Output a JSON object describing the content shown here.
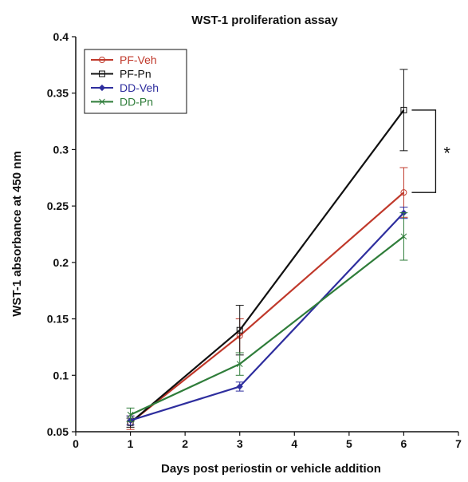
{
  "chart_data": {
    "type": "line",
    "title": "WST-1 proliferation assay",
    "xlabel": "Days post periostin or vehicle addition",
    "ylabel": "WST-1 absorbance at 450 nm",
    "xlim": [
      0,
      7
    ],
    "ylim": [
      0.05,
      0.4
    ],
    "x_ticks": [
      0,
      1,
      2,
      3,
      4,
      5,
      6,
      7
    ],
    "y_ticks": [
      0.05,
      0.1,
      0.15,
      0.2,
      0.25,
      0.3,
      0.35,
      0.4
    ],
    "y_tick_labels": [
      "0.05",
      "0.1",
      "0.15",
      "0.2",
      "0.25",
      "0.3",
      "0.35",
      "0.4"
    ],
    "grid": false,
    "legend_position": "top-left",
    "x": [
      1,
      3,
      6
    ],
    "series": [
      {
        "name": "PF-Veh",
        "color": "#c0392b",
        "marker": "circle",
        "values": [
          0.058,
          0.135,
          0.262
        ],
        "errors": [
          0.006,
          0.015,
          0.022
        ]
      },
      {
        "name": "PF-Pn",
        "color": "#111111",
        "marker": "square",
        "values": [
          0.058,
          0.14,
          0.335
        ],
        "errors": [
          0.004,
          0.022,
          0.036
        ]
      },
      {
        "name": "DD-Veh",
        "color": "#2e2e9e",
        "marker": "diamond",
        "values": [
          0.06,
          0.09,
          0.244
        ],
        "errors": [
          0.004,
          0.004,
          0.005
        ]
      },
      {
        "name": "DD-Pn",
        "color": "#2f7d3a",
        "marker": "x",
        "values": [
          0.065,
          0.11,
          0.223
        ],
        "errors": [
          0.006,
          0.01,
          0.021
        ]
      }
    ],
    "annotations": [
      {
        "text": "*",
        "type": "significance-bracket",
        "x": 6,
        "y_from": 0.335,
        "y_to": 0.262
      }
    ]
  }
}
